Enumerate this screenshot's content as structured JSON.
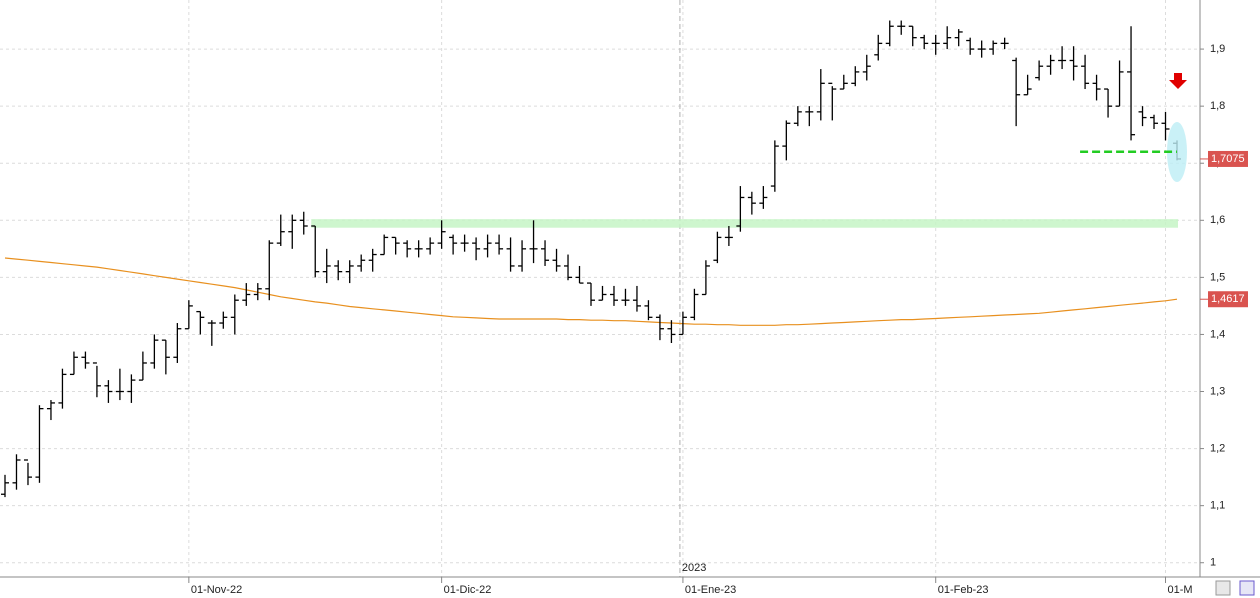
{
  "chart_data": {
    "type": "ohlc",
    "categories": [
      null,
      null,
      null,
      null,
      null,
      null,
      null,
      null,
      null,
      null,
      null,
      null,
      null,
      null,
      null,
      null,
      "01-Nov-22",
      null,
      null,
      null,
      null,
      null,
      null,
      null,
      null,
      null,
      null,
      null,
      null,
      null,
      null,
      null,
      null,
      null,
      null,
      null,
      null,
      null,
      "01-Dic-22",
      null,
      null,
      null,
      null,
      null,
      null,
      null,
      null,
      null,
      null,
      null,
      null,
      null,
      null,
      null,
      null,
      null,
      null,
      null,
      null,
      "01-Ene-23",
      null,
      null,
      null,
      null,
      null,
      null,
      null,
      null,
      null,
      null,
      null,
      null,
      null,
      null,
      null,
      null,
      null,
      null,
      null,
      null,
      null,
      "01-Feb-23",
      null,
      null,
      null,
      null,
      null,
      null,
      null,
      null,
      null,
      null,
      null,
      null,
      null,
      null,
      null,
      null,
      null,
      null,
      null,
      "01-M",
      null
    ],
    "open": [
      1.12,
      1.14,
      1.18,
      1.15,
      1.27,
      1.28,
      1.33,
      1.36,
      1.35,
      1.31,
      1.3,
      1.3,
      1.32,
      1.35,
      1.39,
      1.36,
      1.41,
      1.44,
      1.42,
      1.42,
      1.43,
      1.46,
      1.47,
      1.48,
      1.56,
      1.58,
      1.6,
      1.59,
      1.51,
      1.52,
      1.51,
      1.52,
      1.53,
      1.54,
      1.57,
      1.56,
      1.55,
      1.55,
      1.56,
      1.57,
      1.56,
      1.56,
      1.55,
      1.56,
      1.55,
      1.52,
      1.55,
      1.55,
      1.53,
      1.52,
      1.5,
      1.49,
      1.46,
      1.47,
      1.46,
      1.46,
      1.45,
      1.43,
      1.41,
      1.4,
      1.43,
      1.47,
      1.53,
      1.57,
      1.59,
      1.64,
      1.63,
      1.66,
      1.73,
      1.77,
      1.79,
      1.79,
      1.84,
      1.83,
      1.84,
      1.86,
      1.89,
      1.91,
      1.94,
      1.94,
      1.92,
      1.91,
      1.91,
      1.92,
      1.915,
      1.9,
      1.9,
      1.91,
      1.88,
      1.82,
      1.85,
      1.87,
      1.88,
      1.88,
      1.87,
      1.84,
      1.83,
      1.8,
      1.86,
      1.79,
      1.78,
      1.77,
      1.735
    ],
    "high": [
      1.154,
      1.19,
      1.175,
      1.276,
      1.285,
      1.34,
      1.37,
      1.37,
      1.345,
      1.32,
      1.34,
      1.33,
      1.37,
      1.4,
      1.39,
      1.42,
      1.46,
      1.44,
      1.425,
      1.44,
      1.47,
      1.49,
      1.49,
      1.565,
      1.61,
      1.61,
      1.615,
      1.59,
      1.55,
      1.53,
      1.53,
      1.54,
      1.55,
      1.575,
      1.57,
      1.565,
      1.565,
      1.57,
      1.6,
      1.575,
      1.575,
      1.57,
      1.575,
      1.575,
      1.57,
      1.565,
      1.6,
      1.565,
      1.55,
      1.54,
      1.52,
      1.49,
      1.485,
      1.485,
      1.48,
      1.485,
      1.46,
      1.435,
      1.425,
      1.44,
      1.48,
      1.53,
      1.58,
      1.59,
      1.66,
      1.65,
      1.66,
      1.74,
      1.775,
      1.8,
      1.8,
      1.865,
      1.835,
      1.855,
      1.87,
      1.89,
      1.925,
      1.95,
      1.95,
      1.94,
      1.925,
      1.925,
      1.94,
      1.935,
      1.92,
      1.915,
      1.915,
      1.92,
      1.885,
      1.855,
      1.88,
      1.89,
      1.905,
      1.905,
      1.89,
      1.855,
      1.83,
      1.88,
      1.94,
      1.8,
      1.785,
      1.79,
      1.74
    ],
    "low": [
      1.115,
      1.128,
      1.136,
      1.14,
      1.25,
      1.27,
      1.33,
      1.34,
      1.29,
      1.28,
      1.285,
      1.28,
      1.32,
      1.34,
      1.33,
      1.35,
      1.41,
      1.4,
      1.38,
      1.41,
      1.4,
      1.45,
      1.46,
      1.46,
      1.555,
      1.55,
      1.575,
      1.5,
      1.49,
      1.495,
      1.49,
      1.51,
      1.51,
      1.54,
      1.54,
      1.535,
      1.535,
      1.54,
      1.55,
      1.54,
      1.545,
      1.53,
      1.535,
      1.54,
      1.51,
      1.51,
      1.525,
      1.52,
      1.51,
      1.495,
      1.49,
      1.45,
      1.46,
      1.45,
      1.45,
      1.44,
      1.425,
      1.39,
      1.385,
      1.4,
      1.425,
      1.47,
      1.525,
      1.555,
      1.58,
      1.61,
      1.62,
      1.65,
      1.705,
      1.765,
      1.765,
      1.775,
      1.775,
      1.83,
      1.835,
      1.845,
      1.88,
      1.905,
      1.925,
      1.905,
      1.9,
      1.89,
      1.9,
      1.905,
      1.89,
      1.885,
      1.89,
      1.9,
      1.765,
      1.82,
      1.845,
      1.855,
      1.865,
      1.845,
      1.83,
      1.81,
      1.78,
      1.8,
      1.74,
      1.765,
      1.76,
      1.74,
      1.705
    ],
    "close": [
      1.14,
      1.18,
      1.15,
      1.27,
      1.28,
      1.33,
      1.36,
      1.35,
      1.31,
      1.3,
      1.3,
      1.32,
      1.35,
      1.39,
      1.36,
      1.41,
      1.45,
      1.43,
      1.42,
      1.43,
      1.46,
      1.47,
      1.48,
      1.56,
      1.58,
      1.6,
      1.59,
      1.51,
      1.52,
      1.51,
      1.52,
      1.53,
      1.54,
      1.57,
      1.56,
      1.55,
      1.55,
      1.56,
      1.58,
      1.56,
      1.56,
      1.55,
      1.56,
      1.55,
      1.52,
      1.55,
      1.55,
      1.53,
      1.52,
      1.5,
      1.49,
      1.46,
      1.47,
      1.46,
      1.46,
      1.45,
      1.43,
      1.41,
      1.4,
      1.43,
      1.47,
      1.52,
      1.57,
      1.57,
      1.64,
      1.63,
      1.64,
      1.73,
      1.77,
      1.79,
      1.79,
      1.84,
      1.83,
      1.84,
      1.86,
      1.87,
      1.91,
      1.94,
      1.94,
      1.92,
      1.91,
      1.91,
      1.92,
      1.93,
      1.9,
      1.9,
      1.91,
      1.91,
      1.82,
      1.83,
      1.87,
      1.88,
      1.88,
      1.87,
      1.84,
      1.83,
      1.8,
      1.86,
      1.75,
      1.78,
      1.77,
      1.76,
      1.7075
    ],
    "bar_color": "#000000",
    "moving_average": {
      "color": "#e8901f",
      "values": [
        1.534,
        1.532,
        1.53,
        1.528,
        1.526,
        1.524,
        1.522,
        1.52,
        1.518,
        1.515,
        1.512,
        1.509,
        1.506,
        1.503,
        1.5,
        1.497,
        1.494,
        1.491,
        1.488,
        1.485,
        1.482,
        1.478,
        1.474,
        1.47,
        1.466,
        1.463,
        1.46,
        1.457,
        1.455,
        1.452,
        1.449,
        1.447,
        1.445,
        1.443,
        1.441,
        1.439,
        1.437,
        1.435,
        1.433,
        1.431,
        1.43,
        1.429,
        1.428,
        1.427,
        1.427,
        1.427,
        1.427,
        1.427,
        1.427,
        1.426,
        1.426,
        1.425,
        1.425,
        1.424,
        1.424,
        1.423,
        1.422,
        1.421,
        1.42,
        1.419,
        1.418,
        1.418,
        1.417,
        1.417,
        1.416,
        1.416,
        1.416,
        1.416,
        1.417,
        1.417,
        1.418,
        1.419,
        1.42,
        1.421,
        1.422,
        1.423,
        1.424,
        1.425,
        1.426,
        1.426,
        1.427,
        1.428,
        1.429,
        1.43,
        1.431,
        1.432,
        1.433,
        1.434,
        1.435,
        1.436,
        1.437,
        1.439,
        1.441,
        1.443,
        1.445,
        1.447,
        1.449,
        1.451,
        1.453,
        1.455,
        1.457,
        1.459,
        1.4617
      ]
    },
    "ylim": [
      0.975,
      1.986
    ],
    "yticks": [
      1,
      {
        "value": 1.1,
        "label": "1,1"
      },
      {
        "value": 1.2,
        "label": "1,2"
      },
      {
        "value": 1.3,
        "label": "1,3"
      },
      {
        "value": 1.4,
        "label": "1,4"
      },
      {
        "value": 1.5,
        "label": "1,5"
      },
      {
        "value": 1.6,
        "label": "1,6"
      },
      {
        "value": 1.7,
        "label": "1,7"
      },
      {
        "value": 1.8,
        "label": "1,8"
      },
      {
        "value": 1.9,
        "label": "1,9"
      }
    ],
    "grid": true,
    "year_label": "2023",
    "price_labels": [
      {
        "value": 1.7075,
        "label": "1,7075"
      },
      {
        "value": 1.4617,
        "label": "1,4617"
      }
    ],
    "support_zone": [
      1.587,
      1.602
    ],
    "support_line": 1.72
  }
}
